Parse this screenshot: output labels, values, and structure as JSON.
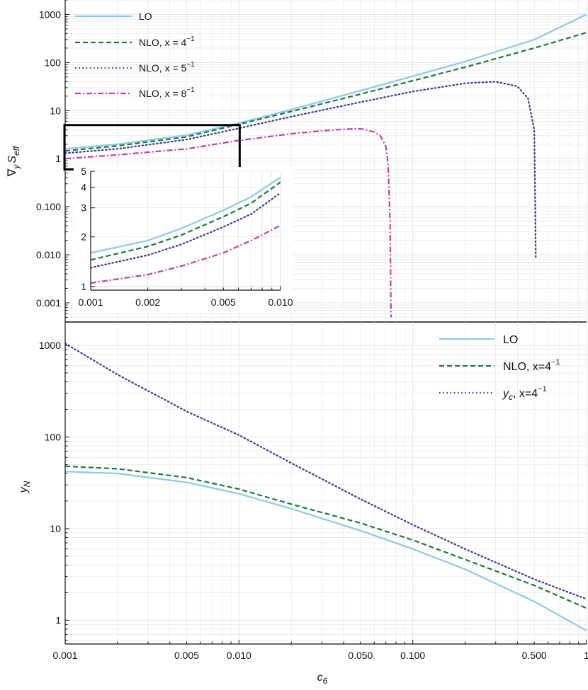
{
  "colors": {
    "LO": "#8ecae6",
    "NLO_4": "#1a7a3a",
    "NLO_5": "#3a3a9a",
    "NLO_8": "#c040a8"
  },
  "chart_data": [
    {
      "type": "line",
      "panel": "top",
      "title": "",
      "xlabel": "",
      "ylabel": "∇ᵧ S_eff",
      "ylabel_main": "∇",
      "ylabel_sub_y": "y",
      "ylabel_S": "S",
      "ylabel_sub_eff": "eff",
      "xscale": "log",
      "yscale": "log",
      "xlim": [
        0.001,
        1
      ],
      "ylim": [
        0.0004,
        2000
      ],
      "yticks": [
        "1000",
        "100",
        "10",
        "1",
        "0.100",
        "0.010",
        "0.001"
      ],
      "grid": true,
      "legend_position": "top-left",
      "legend": [
        {
          "key": "LO",
          "label": "LO"
        },
        {
          "key": "NLO_4",
          "label": "NLO, x = 4",
          "sup": "−1"
        },
        {
          "key": "NLO_5",
          "label": "NLO, x = 5",
          "sup": "−1"
        },
        {
          "key": "NLO_8",
          "label": "NLO, x = 8",
          "sup": "−1"
        }
      ],
      "series": [
        {
          "key": "LO",
          "name": "LO",
          "x": [
            0.001,
            0.002,
            0.005,
            0.01,
            0.02,
            0.05,
            0.1,
            0.2,
            0.5,
            1
          ],
          "y": [
            1.6,
            2.0,
            3.1,
            5.5,
            10.5,
            26,
            52,
            105,
            300,
            1000
          ]
        },
        {
          "key": "NLO_4",
          "name": "NLO, x = 4⁻¹",
          "x": [
            0.001,
            0.002,
            0.005,
            0.01,
            0.02,
            0.05,
            0.1,
            0.2,
            0.5,
            1
          ],
          "y": [
            1.45,
            1.85,
            2.85,
            5.2,
            9.6,
            22,
            42,
            80,
            200,
            420
          ]
        },
        {
          "key": "NLO_5",
          "name": "NLO, x = 5⁻¹",
          "x": [
            0.001,
            0.002,
            0.005,
            0.01,
            0.02,
            0.05,
            0.1,
            0.2,
            0.3,
            0.4,
            0.46,
            0.5,
            0.505,
            0.51
          ],
          "y": [
            1.3,
            1.6,
            2.5,
            4.3,
            7.5,
            15,
            25,
            37,
            40,
            32,
            18,
            4,
            0.3,
            0.009
          ]
        },
        {
          "key": "NLO_8",
          "name": "NLO, x = 8⁻¹",
          "x": [
            0.001,
            0.002,
            0.005,
            0.01,
            0.02,
            0.03,
            0.04,
            0.05,
            0.06,
            0.065,
            0.07,
            0.072,
            0.074,
            0.075
          ],
          "y": [
            1.0,
            1.2,
            1.6,
            2.4,
            3.3,
            3.8,
            4.1,
            4.2,
            3.6,
            3.0,
            1.8,
            0.8,
            0.05,
            0.0005
          ]
        }
      ]
    },
    {
      "type": "line",
      "panel": "inset",
      "title": "",
      "xscale": "log",
      "yscale": "log",
      "xlim": [
        0.001,
        0.01
      ],
      "ylim": [
        0.95,
        5
      ],
      "xticks": [
        "0.001",
        "0.002",
        "0.005",
        "0.010"
      ],
      "yticks": [
        "5",
        "4",
        "3",
        "2",
        "1"
      ],
      "series": [
        {
          "key": "LO",
          "x": [
            0.001,
            0.002,
            0.003,
            0.005,
            0.007,
            0.01
          ],
          "y": [
            1.6,
            1.9,
            2.25,
            2.9,
            3.5,
            4.6
          ]
        },
        {
          "key": "NLO_4",
          "x": [
            0.001,
            0.002,
            0.003,
            0.005,
            0.007,
            0.01
          ],
          "y": [
            1.45,
            1.75,
            2.05,
            2.65,
            3.2,
            4.3
          ]
        },
        {
          "key": "NLO_5",
          "x": [
            0.001,
            0.002,
            0.003,
            0.005,
            0.007,
            0.01
          ],
          "y": [
            1.3,
            1.55,
            1.8,
            2.3,
            2.75,
            3.7
          ]
        },
        {
          "key": "NLO_8",
          "x": [
            0.001,
            0.002,
            0.003,
            0.005,
            0.007,
            0.01
          ],
          "y": [
            1.05,
            1.18,
            1.33,
            1.6,
            1.9,
            2.35
          ]
        }
      ]
    },
    {
      "type": "line",
      "panel": "bottom",
      "title": "",
      "xlabel": "c",
      "xlabel_sub": "6",
      "ylabel": "y",
      "ylabel_sub": "N",
      "xscale": "log",
      "yscale": "log",
      "xlim": [
        0.001,
        1
      ],
      "ylim": [
        0.55,
        1800
      ],
      "xticks": [
        "0.001",
        "0.005",
        "0.010",
        "0.050",
        "0.100",
        "0.500",
        "1"
      ],
      "yticks": [
        "1000",
        "100",
        "10",
        "1"
      ],
      "grid": true,
      "legend_position": "top-right",
      "legend": [
        {
          "key": "LO",
          "label": "LO"
        },
        {
          "key": "NLO_4",
          "label": "NLO, x=4",
          "sup": "−1"
        },
        {
          "key": "NLO_5",
          "label_italic": "y",
          "label_sub": "c",
          "label": ", x=4",
          "sup": "−1"
        }
      ],
      "series": [
        {
          "key": "LO",
          "name": "LO",
          "x": [
            0.001,
            0.002,
            0.005,
            0.01,
            0.02,
            0.05,
            0.1,
            0.2,
            0.5,
            1
          ],
          "y": [
            42,
            40,
            32,
            24,
            16.5,
            9.5,
            6,
            3.6,
            1.6,
            0.77
          ]
        },
        {
          "key": "NLO_4",
          "name": "NLO, x=4⁻¹",
          "x": [
            0.001,
            0.002,
            0.005,
            0.01,
            0.02,
            0.05,
            0.1,
            0.2,
            0.5,
            1
          ],
          "y": [
            48,
            45,
            36,
            27,
            18.5,
            11.5,
            7.5,
            4.6,
            2.4,
            1.35
          ]
        },
        {
          "key": "NLO_5",
          "name": "y_c, x=4⁻¹",
          "x": [
            0.001,
            0.002,
            0.005,
            0.01,
            0.02,
            0.05,
            0.1,
            0.2,
            0.5,
            1
          ],
          "y": [
            1050,
            480,
            190,
            105,
            52,
            21,
            11,
            6,
            2.8,
            1.7
          ]
        }
      ]
    }
  ]
}
